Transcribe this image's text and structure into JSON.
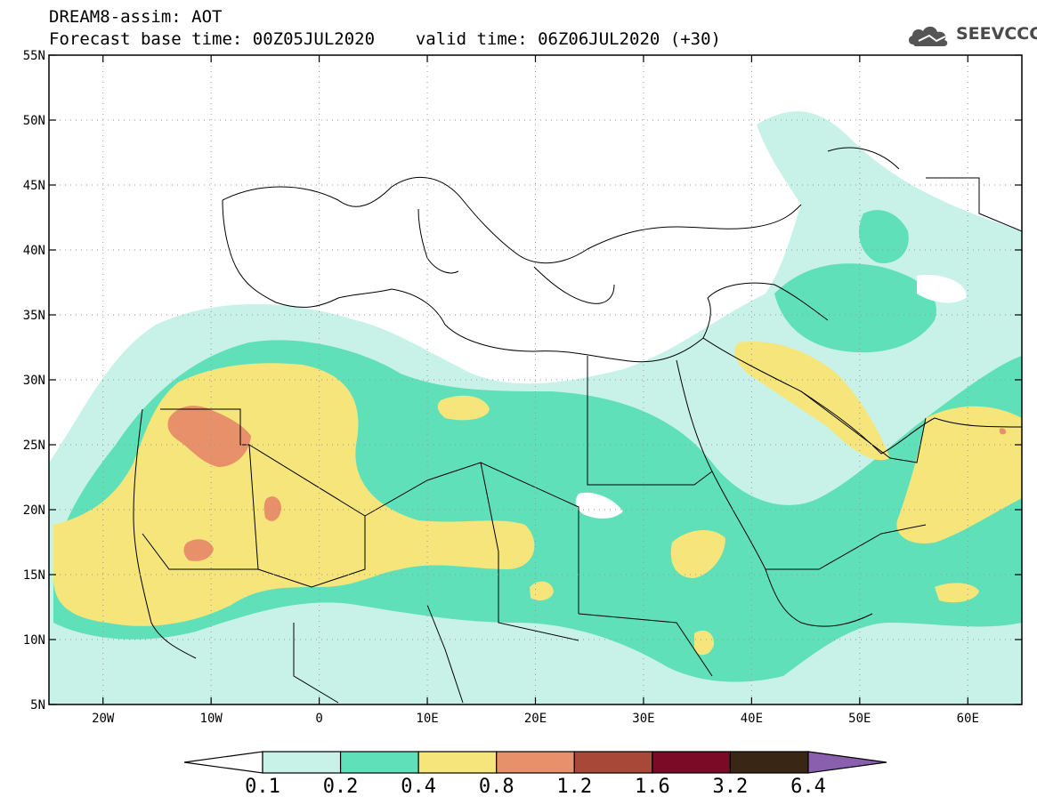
{
  "title": {
    "line1": "DREAM8-assim: AOT",
    "base_time": "Forecast base time: 00Z05JUL2020",
    "valid_time": "valid time: 06Z06JUL2020 (+30)"
  },
  "logo": {
    "text": "SEEVCCC",
    "icon": "cloud-icon"
  },
  "map": {
    "lon_range": [
      -25,
      65
    ],
    "lat_range": [
      5,
      55
    ],
    "lon_ticks": [
      {
        "value": -20,
        "label": "20W"
      },
      {
        "value": -10,
        "label": "10W"
      },
      {
        "value": 0,
        "label": "0"
      },
      {
        "value": 10,
        "label": "10E"
      },
      {
        "value": 20,
        "label": "20E"
      },
      {
        "value": 30,
        "label": "30E"
      },
      {
        "value": 40,
        "label": "40E"
      },
      {
        "value": 50,
        "label": "50E"
      },
      {
        "value": 60,
        "label": "60E"
      }
    ],
    "lat_ticks": [
      {
        "value": 55,
        "label": "55N"
      },
      {
        "value": 50,
        "label": "50N"
      },
      {
        "value": 45,
        "label": "45N"
      },
      {
        "value": 40,
        "label": "40N"
      },
      {
        "value": 35,
        "label": "35N"
      },
      {
        "value": 30,
        "label": "30N"
      },
      {
        "value": 25,
        "label": "25N"
      },
      {
        "value": 20,
        "label": "20N"
      },
      {
        "value": 15,
        "label": "15N"
      },
      {
        "value": 10,
        "label": "10N"
      },
      {
        "value": 5,
        "label": "5N"
      }
    ]
  },
  "colorbar": {
    "labels": [
      "0.1",
      "0.2",
      "0.4",
      "0.8",
      "1.2",
      "1.6",
      "3.2",
      "6.4"
    ],
    "colors": [
      "#c8f2e8",
      "#5fe0b8",
      "#f5e57a",
      "#e8906a",
      "#a84838",
      "#7a0a26",
      "#3a2614",
      "#8a5fae"
    ]
  }
}
